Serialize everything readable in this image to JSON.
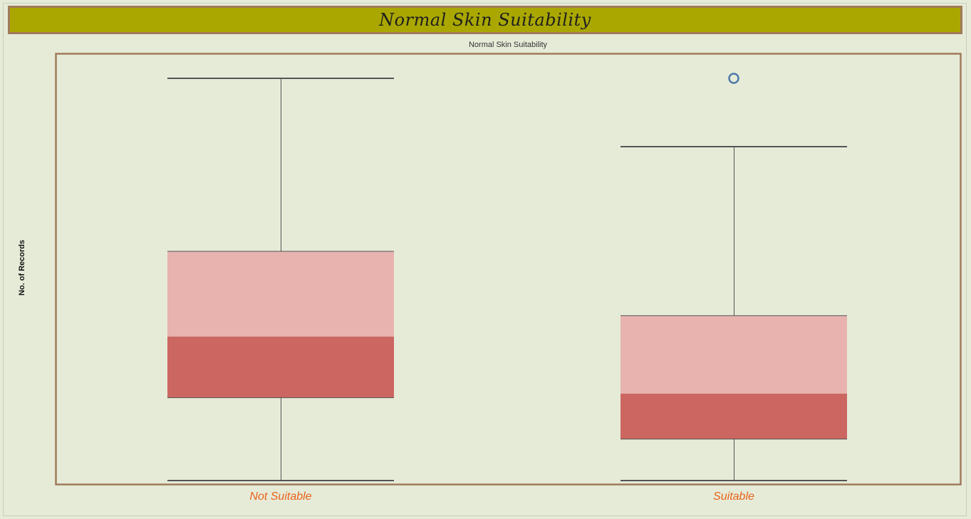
{
  "dashboard": {
    "title": "Normal Skin Suitability"
  },
  "chart_data": {
    "type": "boxplot",
    "title": "Normal Skin Suitability",
    "xlabel": "",
    "ylabel": "No. of Records",
    "ylim": [
      0,
      100
    ],
    "y_ticks_shown": false,
    "grid": false,
    "categories": [
      "Not Suitable",
      "Suitable"
    ],
    "boxes": [
      {
        "category": "Not Suitable",
        "whisker_low": 1,
        "q1": 21.6,
        "median": 36.8,
        "q3": 58,
        "whisker_high": 101,
        "outliers": []
      },
      {
        "category": "Suitable",
        "whisker_low": 1,
        "q1": 11.3,
        "median": 22.6,
        "q3": 42,
        "whisker_high": 84,
        "outliers": [
          101
        ]
      }
    ],
    "colors": {
      "upper_box": "#e8b3ae",
      "lower_box": "#cc6661",
      "whisker": "#555555",
      "outlier": "#4e79a7",
      "plot_border": "#a07a5a",
      "tick_label": "#e8621a"
    }
  }
}
